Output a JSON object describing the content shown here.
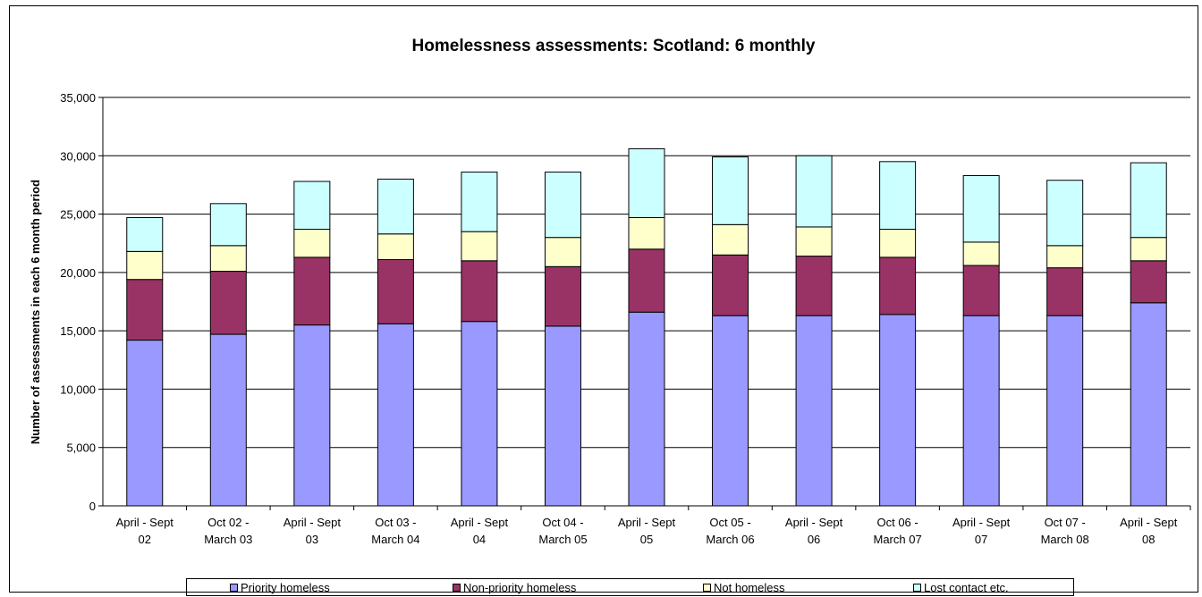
{
  "chart_data": {
    "type": "bar",
    "stacked": true,
    "title": "Homelessness assessments: Scotland: 6 monthly",
    "ylabel": "Number of assessments in each 6 month period",
    "xlabel": "",
    "ylim": [
      0,
      35000
    ],
    "yticks": [
      0,
      5000,
      10000,
      15000,
      20000,
      25000,
      30000,
      35000
    ],
    "ytick_labels": [
      "0",
      "5,000",
      "10,000",
      "15,000",
      "20,000",
      "25,000",
      "30,000",
      "35,000"
    ],
    "grid": "horizontal",
    "legend_position": "bottom",
    "categories": [
      [
        "April - Sept",
        "02"
      ],
      [
        "Oct 02 -",
        "March 03"
      ],
      [
        "April - Sept",
        "03"
      ],
      [
        "Oct 03 -",
        "March 04"
      ],
      [
        "April - Sept",
        "04"
      ],
      [
        "Oct 04 -",
        "March 05"
      ],
      [
        "April - Sept",
        "05"
      ],
      [
        "Oct 05 -",
        "March 06"
      ],
      [
        "April - Sept",
        "06"
      ],
      [
        "Oct 06 -",
        "March 07"
      ],
      [
        "April - Sept",
        "07"
      ],
      [
        "Oct 07 -",
        "March 08"
      ],
      [
        "April - Sept",
        "08"
      ]
    ],
    "series": [
      {
        "name": "Priority homeless",
        "color": "#9999ff",
        "values": [
          14200,
          14700,
          15500,
          15600,
          15800,
          15400,
          16600,
          16300,
          16300,
          16400,
          16300,
          16300,
          17400
        ]
      },
      {
        "name": "Non-priority homeless",
        "color": "#993366",
        "values": [
          5200,
          5400,
          5800,
          5500,
          5200,
          5100,
          5400,
          5200,
          5100,
          4900,
          4300,
          4100,
          3600
        ]
      },
      {
        "name": "Not homeless",
        "color": "#ffffcc",
        "values": [
          2400,
          2200,
          2400,
          2200,
          2500,
          2500,
          2700,
          2600,
          2500,
          2400,
          2000,
          1900,
          2000
        ]
      },
      {
        "name": "Lost contact etc.",
        "color": "#ccffff",
        "values": [
          2900,
          3600,
          4100,
          4700,
          5100,
          5600,
          5900,
          5800,
          6100,
          5800,
          5700,
          5600,
          6400
        ]
      }
    ]
  }
}
